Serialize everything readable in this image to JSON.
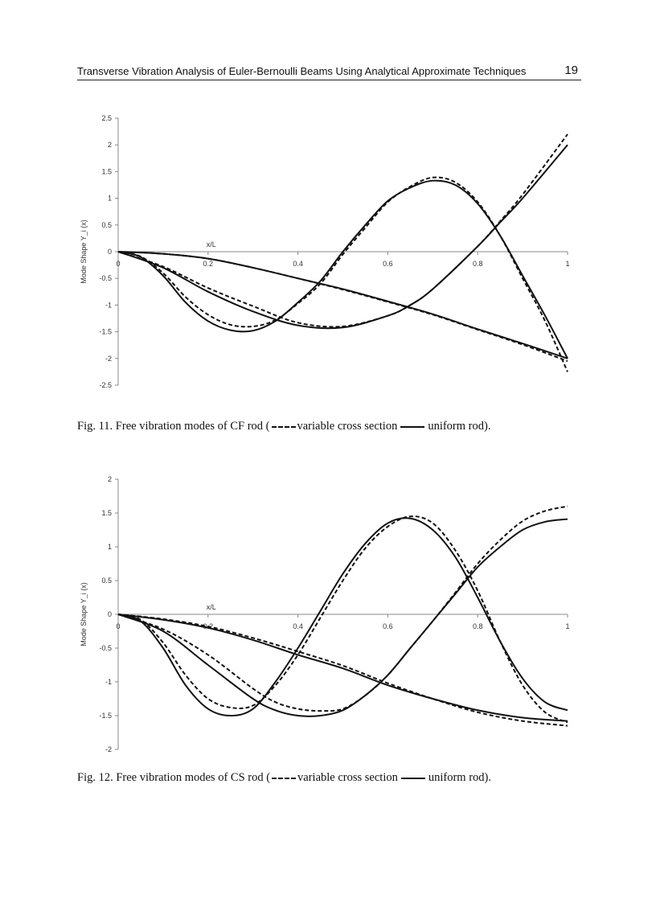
{
  "header": {
    "running_title": "Transverse Vibration Analysis of Euler-Bernoulli Beams Using Analytical Approximate Techniques",
    "page_number": "19"
  },
  "figures": [
    {
      "caption_prefix": "Fig. 11. Free vibration modes of CF rod (",
      "caption_dashed": "variable cross section",
      "caption_solid": "uniform rod).",
      "caption": "Fig. 11. Free vibration modes of CF rod (variable cross section uniform rod)."
    },
    {
      "caption_prefix": "Fig. 12. Free vibration modes of CS rod (",
      "caption_dashed": "variable cross section",
      "caption_solid": "uniform rod).",
      "caption": "Fig. 12. Free vibration modes of CS rod (variable cross section uniform rod)."
    }
  ],
  "chart_data": [
    {
      "type": "line",
      "xlabel": "x/L",
      "ylabel": "Mode Shape Y_i (x)",
      "xlim": [
        0,
        1
      ],
      "ylim": [
        -2.5,
        2.5
      ],
      "xticks": [
        "0",
        "0.2",
        "0.4",
        "0.6",
        "0.8",
        "1"
      ],
      "yticks": [
        "2.5",
        "2",
        "1.5",
        "1",
        "0.5",
        "0",
        "-0.5",
        "-1",
        "-1.5",
        "-2",
        "-2.5"
      ],
      "grid": false,
      "series": [
        {
          "name": "uniform rod",
          "style": "solid",
          "points": [
            [
              0,
              0
            ],
            [
              0.1,
              -0.04
            ],
            [
              0.2,
              -0.13
            ],
            [
              0.3,
              -0.3
            ],
            [
              0.4,
              -0.5
            ],
            [
              0.5,
              -0.7
            ],
            [
              0.6,
              -0.93
            ],
            [
              0.7,
              -1.17
            ],
            [
              0.8,
              -1.45
            ],
            [
              0.9,
              -1.72
            ],
            [
              1,
              -2.0
            ]
          ]
        },
        {
          "name": "variable cross section",
          "style": "dashed",
          "points": [
            [
              0,
              0
            ],
            [
              0.1,
              -0.04
            ],
            [
              0.2,
              -0.13
            ],
            [
              0.3,
              -0.3
            ],
            [
              0.4,
              -0.5
            ],
            [
              0.5,
              -0.71
            ],
            [
              0.6,
              -0.94
            ],
            [
              0.7,
              -1.18
            ],
            [
              0.8,
              -1.46
            ],
            [
              0.9,
              -1.74
            ],
            [
              1,
              -2.05
            ]
          ]
        },
        {
          "name": "uniform rod",
          "style": "solid",
          "points": [
            [
              0,
              0
            ],
            [
              0.1,
              -0.3
            ],
            [
              0.2,
              -0.75
            ],
            [
              0.3,
              -1.12
            ],
            [
              0.4,
              -1.38
            ],
            [
              0.5,
              -1.42
            ],
            [
              0.6,
              -1.2
            ],
            [
              0.65,
              -1.0
            ],
            [
              0.7,
              -0.7
            ],
            [
              0.8,
              0.1
            ],
            [
              0.85,
              0.55
            ],
            [
              0.9,
              1.0
            ],
            [
              1,
              2.0
            ]
          ]
        },
        {
          "name": "variable cross section",
          "style": "dashed",
          "points": [
            [
              0,
              0
            ],
            [
              0.1,
              -0.28
            ],
            [
              0.2,
              -0.68
            ],
            [
              0.3,
              -1.02
            ],
            [
              0.4,
              -1.33
            ],
            [
              0.5,
              -1.4
            ],
            [
              0.6,
              -1.2
            ],
            [
              0.65,
              -1.0
            ],
            [
              0.7,
              -0.7
            ],
            [
              0.8,
              0.1
            ],
            [
              0.85,
              0.57
            ],
            [
              0.9,
              1.07
            ],
            [
              1,
              2.2
            ]
          ]
        },
        {
          "name": "uniform rod",
          "style": "solid",
          "points": [
            [
              0,
              0
            ],
            [
              0.05,
              -0.1
            ],
            [
              0.1,
              -0.45
            ],
            [
              0.15,
              -0.95
            ],
            [
              0.2,
              -1.3
            ],
            [
              0.25,
              -1.47
            ],
            [
              0.3,
              -1.48
            ],
            [
              0.35,
              -1.3
            ],
            [
              0.4,
              -0.95
            ],
            [
              0.45,
              -0.55
            ],
            [
              0.5,
              0
            ],
            [
              0.55,
              0.5
            ],
            [
              0.6,
              0.95
            ],
            [
              0.65,
              1.2
            ],
            [
              0.7,
              1.33
            ],
            [
              0.75,
              1.25
            ],
            [
              0.8,
              0.9
            ],
            [
              0.85,
              0.3
            ],
            [
              0.9,
              -0.45
            ],
            [
              0.95,
              -1.2
            ],
            [
              1,
              -2.0
            ]
          ]
        },
        {
          "name": "variable cross section",
          "style": "dashed",
          "points": [
            [
              0,
              0
            ],
            [
              0.05,
              -0.09
            ],
            [
              0.1,
              -0.4
            ],
            [
              0.15,
              -0.85
            ],
            [
              0.2,
              -1.18
            ],
            [
              0.25,
              -1.37
            ],
            [
              0.3,
              -1.4
            ],
            [
              0.35,
              -1.28
            ],
            [
              0.4,
              -0.97
            ],
            [
              0.45,
              -0.6
            ],
            [
              0.5,
              -0.05
            ],
            [
              0.55,
              0.45
            ],
            [
              0.6,
              0.93
            ],
            [
              0.65,
              1.22
            ],
            [
              0.7,
              1.39
            ],
            [
              0.75,
              1.3
            ],
            [
              0.8,
              0.93
            ],
            [
              0.85,
              0.3
            ],
            [
              0.9,
              -0.5
            ],
            [
              0.95,
              -1.3
            ],
            [
              1,
              -2.25
            ]
          ]
        }
      ]
    },
    {
      "type": "line",
      "xlabel": "x/L",
      "ylabel": "Mode Shape Y_i (x)",
      "xlim": [
        0,
        1
      ],
      "ylim": [
        -2,
        2
      ],
      "xticks": [
        "0",
        "0.2",
        "0.4",
        "0.6",
        "0.8",
        "1"
      ],
      "yticks": [
        "2",
        "1.5",
        "1",
        "0.5",
        "0",
        "-0.5",
        "-1",
        "-1.5",
        "-2"
      ],
      "grid": false,
      "series": [
        {
          "name": "uniform rod",
          "style": "solid",
          "points": [
            [
              0,
              0
            ],
            [
              0.1,
              -0.08
            ],
            [
              0.2,
              -0.2
            ],
            [
              0.3,
              -0.38
            ],
            [
              0.4,
              -0.6
            ],
            [
              0.5,
              -0.8
            ],
            [
              0.6,
              -1.05
            ],
            [
              0.7,
              -1.25
            ],
            [
              0.8,
              -1.42
            ],
            [
              0.9,
              -1.53
            ],
            [
              1,
              -1.58
            ]
          ]
        },
        {
          "name": "variable cross section",
          "style": "dashed",
          "points": [
            [
              0,
              0
            ],
            [
              0.1,
              -0.07
            ],
            [
              0.2,
              -0.18
            ],
            [
              0.3,
              -0.35
            ],
            [
              0.4,
              -0.55
            ],
            [
              0.5,
              -0.76
            ],
            [
              0.6,
              -1.02
            ],
            [
              0.7,
              -1.25
            ],
            [
              0.8,
              -1.45
            ],
            [
              0.9,
              -1.58
            ],
            [
              1,
              -1.65
            ]
          ]
        },
        {
          "name": "uniform rod",
          "style": "solid",
          "points": [
            [
              0,
              0
            ],
            [
              0.1,
              -0.25
            ],
            [
              0.2,
              -0.75
            ],
            [
              0.3,
              -1.25
            ],
            [
              0.35,
              -1.42
            ],
            [
              0.4,
              -1.5
            ],
            [
              0.45,
              -1.5
            ],
            [
              0.5,
              -1.42
            ],
            [
              0.55,
              -1.2
            ],
            [
              0.6,
              -0.9
            ],
            [
              0.65,
              -0.5
            ],
            [
              0.7,
              -0.1
            ],
            [
              0.75,
              0.3
            ],
            [
              0.8,
              0.7
            ],
            [
              0.85,
              1.0
            ],
            [
              0.9,
              1.25
            ],
            [
              0.95,
              1.37
            ],
            [
              1,
              1.41
            ]
          ]
        },
        {
          "name": "variable cross section",
          "style": "dashed",
          "points": [
            [
              0,
              0
            ],
            [
              0.1,
              -0.22
            ],
            [
              0.2,
              -0.6
            ],
            [
              0.3,
              -1.1
            ],
            [
              0.35,
              -1.3
            ],
            [
              0.4,
              -1.4
            ],
            [
              0.45,
              -1.43
            ],
            [
              0.5,
              -1.4
            ],
            [
              0.55,
              -1.2
            ],
            [
              0.6,
              -0.9
            ],
            [
              0.65,
              -0.5
            ],
            [
              0.7,
              -0.1
            ],
            [
              0.75,
              0.32
            ],
            [
              0.8,
              0.75
            ],
            [
              0.85,
              1.1
            ],
            [
              0.9,
              1.38
            ],
            [
              0.95,
              1.53
            ],
            [
              1,
              1.6
            ]
          ]
        },
        {
          "name": "uniform rod",
          "style": "solid",
          "points": [
            [
              0,
              0
            ],
            [
              0.05,
              -0.1
            ],
            [
              0.1,
              -0.5
            ],
            [
              0.15,
              -1.05
            ],
            [
              0.2,
              -1.4
            ],
            [
              0.25,
              -1.5
            ],
            [
              0.3,
              -1.4
            ],
            [
              0.35,
              -1.0
            ],
            [
              0.4,
              -0.5
            ],
            [
              0.45,
              0.05
            ],
            [
              0.5,
              0.6
            ],
            [
              0.55,
              1.05
            ],
            [
              0.6,
              1.35
            ],
            [
              0.65,
              1.42
            ],
            [
              0.7,
              1.25
            ],
            [
              0.75,
              0.85
            ],
            [
              0.8,
              0.25
            ],
            [
              0.85,
              -0.4
            ],
            [
              0.9,
              -0.95
            ],
            [
              0.95,
              -1.3
            ],
            [
              1,
              -1.42
            ]
          ]
        },
        {
          "name": "variable cross section",
          "style": "dashed",
          "points": [
            [
              0,
              0
            ],
            [
              0.05,
              -0.08
            ],
            [
              0.1,
              -0.42
            ],
            [
              0.15,
              -0.9
            ],
            [
              0.2,
              -1.25
            ],
            [
              0.25,
              -1.38
            ],
            [
              0.3,
              -1.35
            ],
            [
              0.35,
              -1.05
            ],
            [
              0.4,
              -0.6
            ],
            [
              0.45,
              -0.05
            ],
            [
              0.5,
              0.5
            ],
            [
              0.55,
              0.98
            ],
            [
              0.6,
              1.3
            ],
            [
              0.65,
              1.45
            ],
            [
              0.7,
              1.35
            ],
            [
              0.75,
              0.95
            ],
            [
              0.8,
              0.35
            ],
            [
              0.85,
              -0.4
            ],
            [
              0.9,
              -1.05
            ],
            [
              0.95,
              -1.45
            ],
            [
              1,
              -1.6
            ]
          ]
        }
      ]
    }
  ]
}
